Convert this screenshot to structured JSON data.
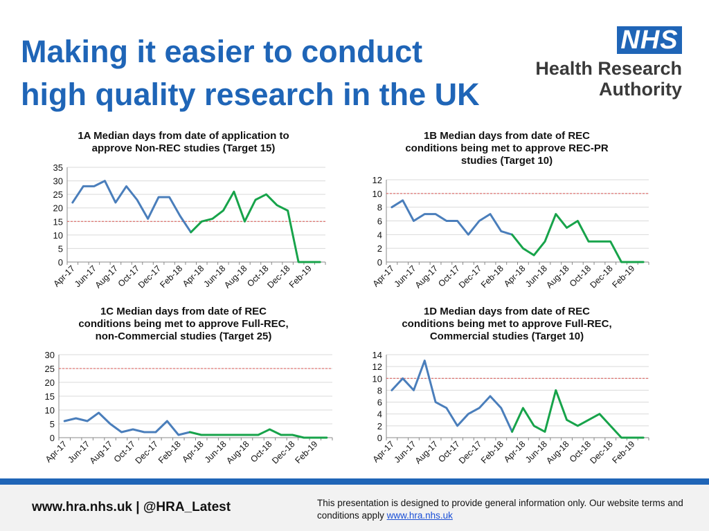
{
  "header": {
    "title_line1": "Making it easier to conduct",
    "title_line2": "high quality research in the UK",
    "logo_text": "NHS",
    "org_line1": "Health Research",
    "org_line2": "Authority"
  },
  "footer": {
    "left_text": "www.hra.nhs.uk | @HRA_Latest",
    "disclaimer": "This presentation is designed to provide general information only. Our website terms and conditions apply",
    "link_text": "www.hra.nhs.uk"
  },
  "colors": {
    "title_blue": "#1f65b7",
    "series_blue": "#4a7ebb",
    "series_green": "#17a34a",
    "target_red": "#d9534f"
  },
  "chart_data": [
    {
      "type": "line",
      "title_lines": [
        "1A Median days from date of application to",
        "approve Non-REC studies (Target 15)"
      ],
      "categories": [
        "Apr-17",
        "May-17",
        "Jun-17",
        "Jul-17",
        "Aug-17",
        "Sep-17",
        "Oct-17",
        "Nov-17",
        "Dec-17",
        "Jan-18",
        "Feb-18",
        "Mar-18",
        "Apr-18",
        "May-18",
        "Jun-18",
        "Jul-18",
        "Aug-18",
        "Sep-18",
        "Oct-18",
        "Nov-18",
        "Dec-18",
        "Jan-19",
        "Feb-19",
        "Mar-19"
      ],
      "x_tick_labels": [
        "Apr-17",
        "Jun-17",
        "Aug-17",
        "Oct-17",
        "Dec-17",
        "Feb-18",
        "Apr-18",
        "Jun-18",
        "Aug-18",
        "Oct-18",
        "Dec-18",
        "Feb-19"
      ],
      "values": [
        22,
        28,
        28,
        30,
        22,
        28,
        23,
        16,
        24,
        24,
        17,
        11,
        15,
        16,
        19,
        26,
        15,
        23,
        25,
        21,
        19,
        0,
        0,
        0
      ],
      "split_index": 11,
      "target": 15,
      "ylim": [
        0,
        35
      ],
      "y_ticks": [
        0,
        5,
        10,
        15,
        20,
        25,
        30,
        35
      ]
    },
    {
      "type": "line",
      "title_lines": [
        "1B Median days from date of REC",
        "conditions being met to approve REC-PR",
        "studies (Target 10)"
      ],
      "categories": [
        "Apr-17",
        "May-17",
        "Jun-17",
        "Jul-17",
        "Aug-17",
        "Sep-17",
        "Oct-17",
        "Nov-17",
        "Dec-17",
        "Jan-18",
        "Feb-18",
        "Mar-18",
        "Apr-18",
        "May-18",
        "Jun-18",
        "Jul-18",
        "Aug-18",
        "Sep-18",
        "Oct-18",
        "Nov-18",
        "Dec-18",
        "Jan-19",
        "Feb-19",
        "Mar-19"
      ],
      "x_tick_labels": [
        "Apr-17",
        "Jun-17",
        "Aug-17",
        "Oct-17",
        "Dec-17",
        "Feb-18",
        "Apr-18",
        "Jun-18",
        "Aug-18",
        "Oct-18",
        "Dec-18",
        "Feb-19"
      ],
      "values": [
        8,
        9,
        6,
        7,
        7,
        6,
        6,
        4,
        6,
        7,
        4.5,
        4,
        2,
        1,
        3,
        7,
        5,
        6,
        3,
        3,
        3,
        0,
        0,
        0
      ],
      "split_index": 11,
      "target": 10,
      "ylim": [
        0,
        12
      ],
      "y_ticks": [
        0,
        2,
        4,
        6,
        8,
        10,
        12
      ]
    },
    {
      "type": "line",
      "title_lines": [
        "1C Median days from date of REC",
        "conditions being met to approve Full-REC,",
        "non-Commercial studies (Target 25)"
      ],
      "categories": [
        "Apr-17",
        "May-17",
        "Jun-17",
        "Jul-17",
        "Aug-17",
        "Sep-17",
        "Oct-17",
        "Nov-17",
        "Dec-17",
        "Jan-18",
        "Feb-18",
        "Mar-18",
        "Apr-18",
        "May-18",
        "Jun-18",
        "Jul-18",
        "Aug-18",
        "Sep-18",
        "Oct-18",
        "Nov-18",
        "Dec-18",
        "Jan-19",
        "Feb-19",
        "Mar-19"
      ],
      "x_tick_labels": [
        "Apr-17",
        "Jun-17",
        "Aug-17",
        "Oct-17",
        "Dec-17",
        "Feb-18",
        "Apr-18",
        "Jun-18",
        "Aug-18",
        "Oct-18",
        "Dec-18",
        "Feb-19"
      ],
      "values": [
        6,
        7,
        6,
        9,
        5,
        2,
        3,
        2,
        2,
        6,
        1,
        2,
        1,
        1,
        1,
        1,
        1,
        1,
        3,
        1,
        1,
        0,
        0,
        0
      ],
      "split_index": 11,
      "target": 25,
      "ylim": [
        0,
        30
      ],
      "y_ticks": [
        0,
        5,
        10,
        15,
        20,
        25,
        30
      ]
    },
    {
      "type": "line",
      "title_lines": [
        "1D Median days from date of REC",
        "conditions being met to approve Full-REC,",
        "Commercial studies (Target 10)"
      ],
      "categories": [
        "Apr-17",
        "May-17",
        "Jun-17",
        "Jul-17",
        "Aug-17",
        "Sep-17",
        "Oct-17",
        "Nov-17",
        "Dec-17",
        "Jan-18",
        "Feb-18",
        "Mar-18",
        "Apr-18",
        "May-18",
        "Jun-18",
        "Jul-18",
        "Aug-18",
        "Sep-18",
        "Oct-18",
        "Nov-18",
        "Dec-18",
        "Jan-19",
        "Feb-19",
        "Mar-19"
      ],
      "x_tick_labels": [
        "Apr-17",
        "Jun-17",
        "Aug-17",
        "Oct-17",
        "Dec-17",
        "Feb-18",
        "Apr-18",
        "Jun-18",
        "Aug-18",
        "Oct-18",
        "Dec-18",
        "Feb-19"
      ],
      "values": [
        8,
        10,
        8,
        13,
        6,
        5,
        2,
        4,
        5,
        7,
        5,
        1,
        5,
        2,
        1,
        8,
        3,
        2,
        3,
        4,
        2,
        0,
        0,
        0
      ],
      "split_index": 11,
      "target": 10,
      "ylim": [
        0,
        14
      ],
      "y_ticks": [
        0,
        2,
        4,
        6,
        8,
        10,
        12,
        14
      ]
    }
  ]
}
